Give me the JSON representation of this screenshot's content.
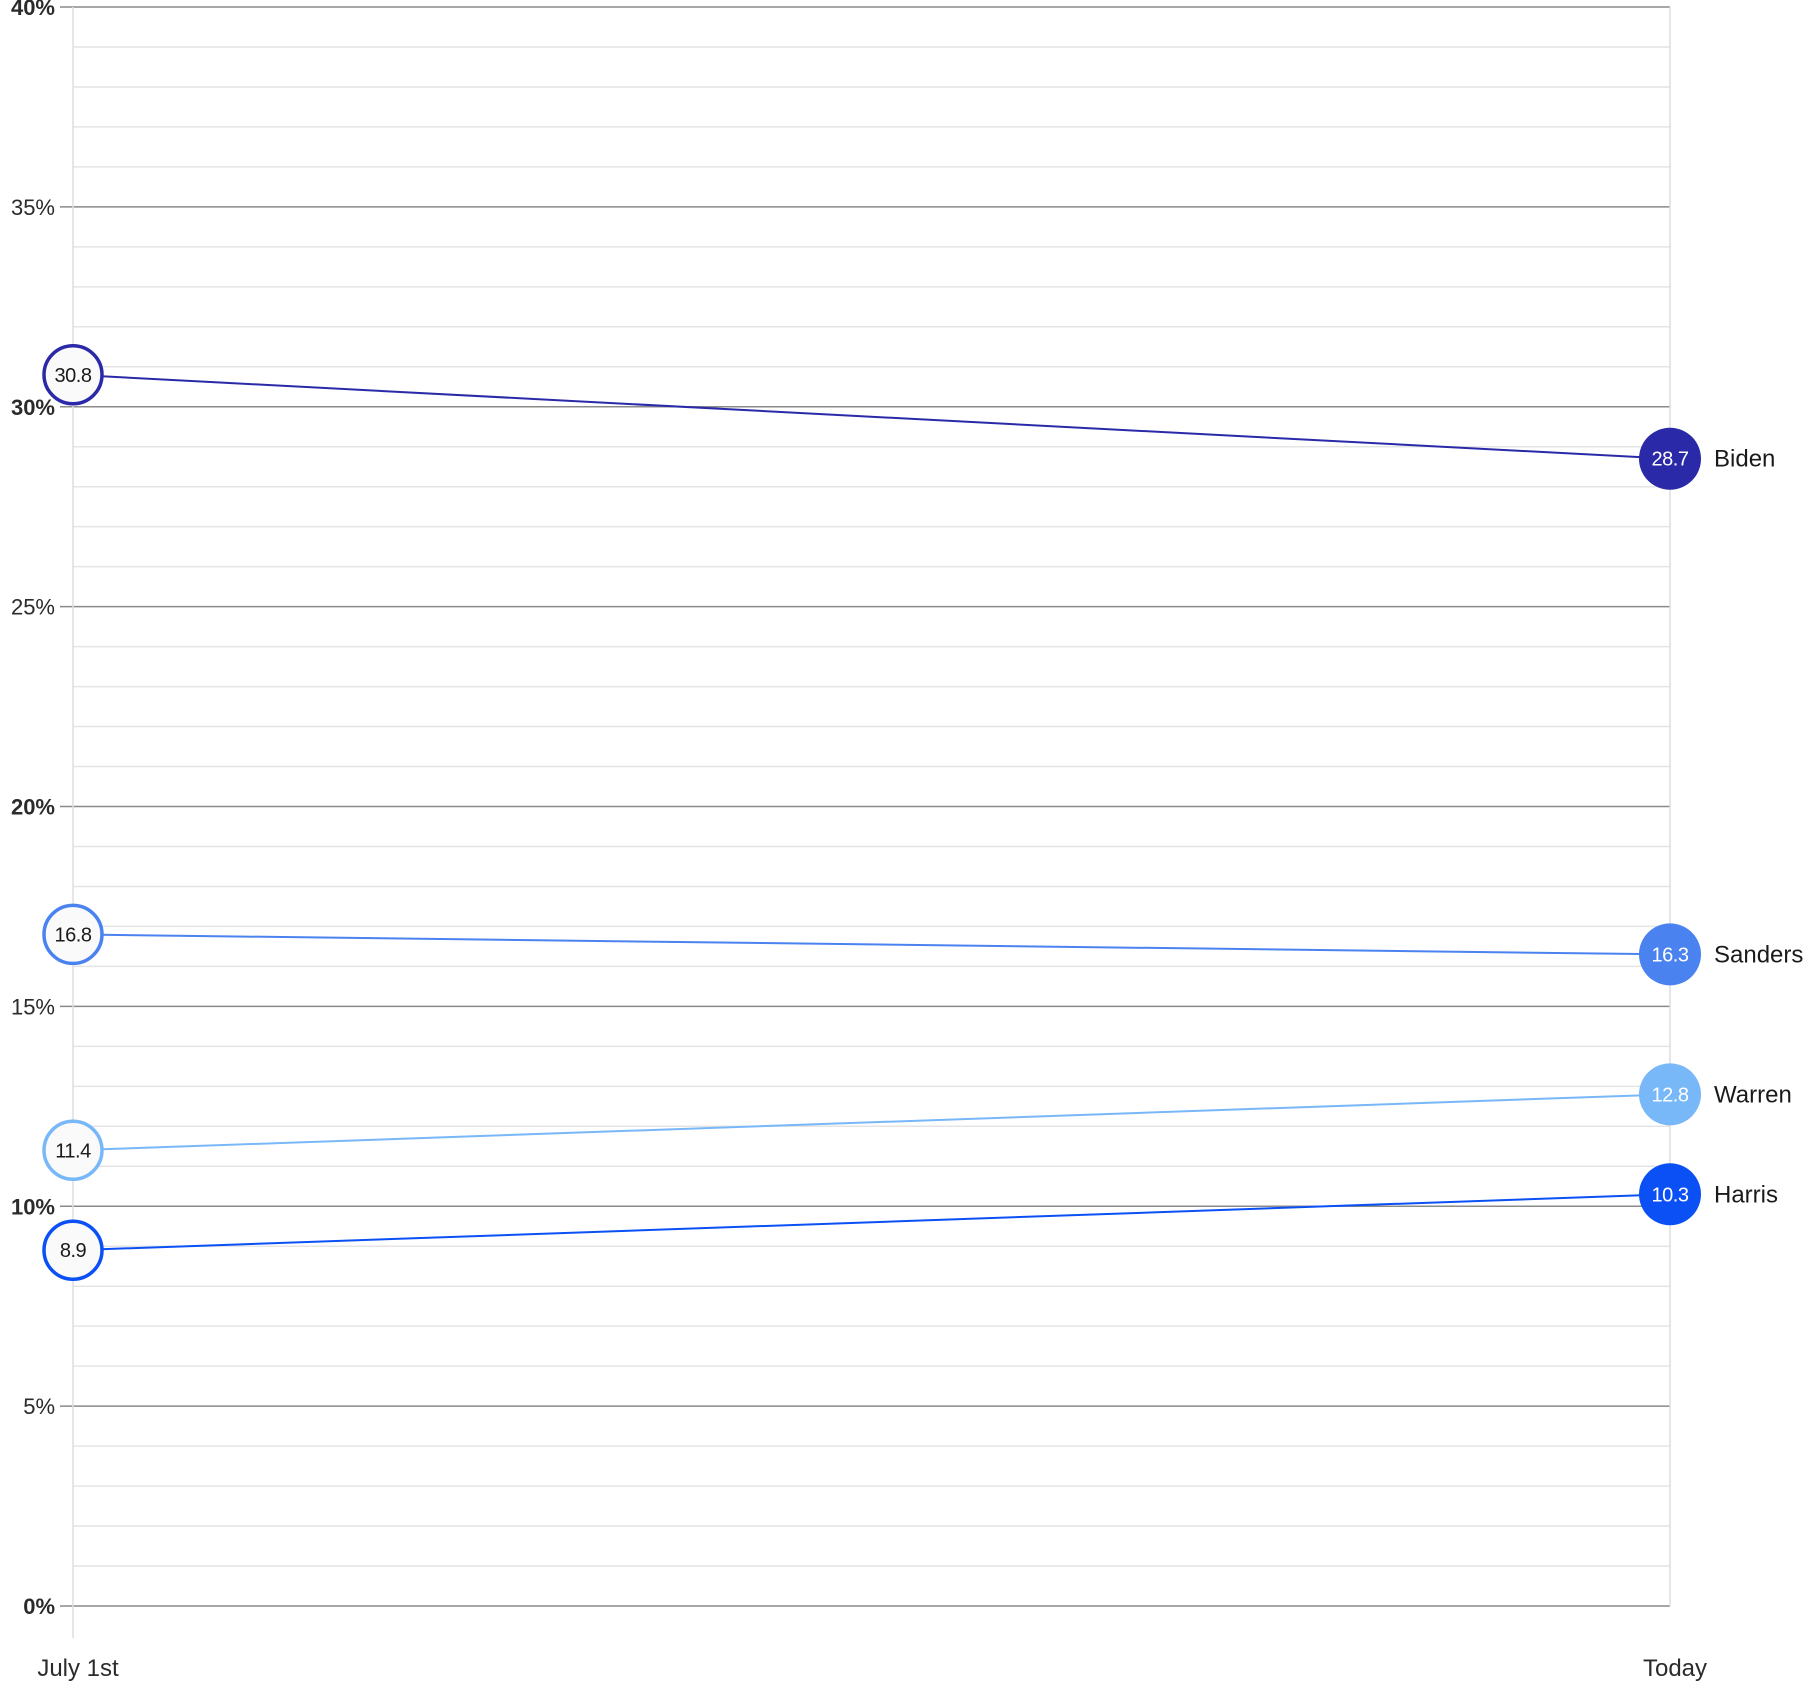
{
  "chart_data": {
    "type": "line",
    "x": [
      "July 1st",
      "Today"
    ],
    "ylim": [
      0,
      40
    ],
    "y_ticks": [
      {
        "value": 0,
        "label": "0%",
        "bold": true
      },
      {
        "value": 5,
        "label": "5%",
        "bold": false
      },
      {
        "value": 10,
        "label": "10%",
        "bold": true
      },
      {
        "value": 15,
        "label": "15%",
        "bold": false
      },
      {
        "value": 20,
        "label": "20%",
        "bold": true
      },
      {
        "value": 25,
        "label": "25%",
        "bold": false
      },
      {
        "value": 30,
        "label": "30%",
        "bold": true
      },
      {
        "value": 35,
        "label": "35%",
        "bold": false
      },
      {
        "value": 40,
        "label": "40%",
        "bold": true
      }
    ],
    "minor_grid_step": 1,
    "grid": true,
    "legend": "right-end labels",
    "series": [
      {
        "name": "Biden",
        "values": [
          30.8,
          28.7
        ],
        "labels": [
          "30.8",
          "28.7"
        ],
        "color": "#2a2aa8"
      },
      {
        "name": "Sanders",
        "values": [
          16.8,
          16.3
        ],
        "labels": [
          "16.8",
          "16.3"
        ],
        "color": "#4a82f0"
      },
      {
        "name": "Warren",
        "values": [
          11.4,
          12.8
        ],
        "labels": [
          "11.4",
          "12.8"
        ],
        "color": "#78b8f8"
      },
      {
        "name": "Harris",
        "values": [
          8.9,
          10.3
        ],
        "labels": [
          "8.9",
          "10.3"
        ],
        "color": "#0a50f5"
      }
    ]
  }
}
